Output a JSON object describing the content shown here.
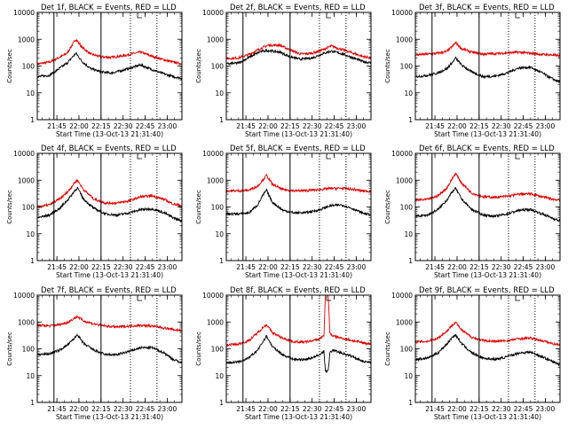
{
  "colors": {
    "black_series": "#000000",
    "red_series": "#e00000",
    "axis": "#000000",
    "background": "#ffffff"
  },
  "shared": {
    "xlabel": "Start Time (13-Oct-13 21:31:40)",
    "ylabel": "Counts/sec",
    "x_tick_labels": [
      "21:45",
      "22:00",
      "22:15",
      "22:30",
      "22:45",
      "23:00"
    ],
    "y_tick_labels": [
      "1",
      "10",
      "100",
      "1000",
      "10000"
    ]
  },
  "chart_data": [
    {
      "type": "line",
      "title": "Det 1f, BLACK = Events, RED = LLD",
      "xlabel": "Start Time (13-Oct-13 21:31:40)",
      "ylabel": "Counts/sec",
      "x_range": [
        "21:31:40",
        "23:10"
      ],
      "y_scale": "log",
      "ylim": [
        1,
        10000
      ],
      "solid_vlines": [
        "21:43",
        "22:15"
      ],
      "dotted_vlines": [
        "22:35",
        "22:53"
      ],
      "series": [
        {
          "color": "red",
          "x": [
            "21:32",
            "21:40",
            "21:45",
            "21:52",
            "21:56",
            "21:58",
            "22:02",
            "22:08",
            "22:15",
            "22:22",
            "22:30",
            "22:38",
            "22:42",
            "22:48",
            "22:56",
            "23:04",
            "23:10"
          ],
          "values": [
            120,
            140,
            190,
            300,
            700,
            1000,
            500,
            280,
            220,
            210,
            240,
            300,
            330,
            250,
            180,
            140,
            120
          ]
        },
        {
          "color": "black",
          "x": [
            "21:32",
            "21:40",
            "21:45",
            "21:52",
            "21:56",
            "21:58",
            "22:02",
            "22:08",
            "22:15",
            "22:22",
            "22:30",
            "22:38",
            "22:42",
            "22:48",
            "22:56",
            "23:04",
            "23:10"
          ],
          "values": [
            40,
            45,
            70,
            130,
            230,
            300,
            150,
            80,
            60,
            55,
            70,
            95,
            110,
            80,
            55,
            40,
            35
          ]
        }
      ]
    },
    {
      "type": "line",
      "title": "Det 2f, BLACK = Events, RED = LLD",
      "xlabel": "Start Time (13-Oct-13 21:31:40)",
      "ylabel": "Counts/sec",
      "x_range": [
        "21:31:40",
        "23:10"
      ],
      "y_scale": "log",
      "ylim": [
        1,
        10000
      ],
      "solid_vlines": [
        "21:43",
        "22:15"
      ],
      "dotted_vlines": [
        "22:35",
        "22:53"
      ],
      "series": [
        {
          "color": "red",
          "x": [
            "21:32",
            "21:40",
            "21:48",
            "21:55",
            "22:00",
            "22:08",
            "22:15",
            "22:22",
            "22:30",
            "22:38",
            "22:43",
            "22:50",
            "22:58",
            "23:04",
            "23:10"
          ],
          "values": [
            190,
            200,
            280,
            450,
            600,
            600,
            400,
            280,
            300,
            420,
            560,
            420,
            300,
            230,
            200
          ]
        },
        {
          "color": "black",
          "x": [
            "21:32",
            "21:40",
            "21:48",
            "21:55",
            "22:00",
            "22:08",
            "22:15",
            "22:22",
            "22:30",
            "22:38",
            "22:43",
            "22:50",
            "22:58",
            "23:04",
            "23:10"
          ],
          "values": [
            120,
            130,
            220,
            350,
            380,
            330,
            220,
            180,
            200,
            300,
            360,
            290,
            200,
            150,
            130
          ]
        }
      ]
    },
    {
      "type": "line",
      "title": "Det 3f, BLACK = Events, RED = LLD",
      "xlabel": "Start Time (13-Oct-13 21:31:40)",
      "ylabel": "Counts/sec",
      "x_range": [
        "21:31:40",
        "23:10"
      ],
      "y_scale": "log",
      "ylim": [
        1,
        10000
      ],
      "solid_vlines": [
        "21:43",
        "22:15"
      ],
      "dotted_vlines": [
        "22:35",
        "22:53"
      ],
      "series": [
        {
          "color": "red",
          "x": [
            "21:32",
            "21:40",
            "21:47",
            "21:53",
            "21:57",
            "21:59",
            "22:03",
            "22:10",
            "22:18",
            "22:26",
            "22:34",
            "22:42",
            "22:50",
            "22:58",
            "23:04",
            "23:10"
          ],
          "values": [
            260,
            280,
            300,
            350,
            550,
            750,
            450,
            330,
            280,
            290,
            310,
            330,
            300,
            270,
            260,
            240
          ]
        },
        {
          "color": "black",
          "x": [
            "21:32",
            "21:40",
            "21:47",
            "21:53",
            "21:57",
            "21:59",
            "22:03",
            "22:10",
            "22:18",
            "22:26",
            "22:34",
            "22:42",
            "22:50",
            "22:58",
            "23:04",
            "23:10"
          ],
          "values": [
            40,
            45,
            55,
            80,
            140,
            200,
            110,
            60,
            40,
            42,
            55,
            85,
            90,
            55,
            35,
            25
          ]
        }
      ]
    },
    {
      "type": "line",
      "title": "Det 4f, BLACK = Events, RED = LLD",
      "xlabel": "Start Time (13-Oct-13 21:31:40)",
      "ylabel": "Counts/sec",
      "x_range": [
        "21:31:40",
        "23:10"
      ],
      "y_scale": "log",
      "ylim": [
        1,
        10000
      ],
      "solid_vlines": [
        "21:43",
        "22:15"
      ],
      "dotted_vlines": [
        "22:35",
        "22:53"
      ],
      "series": [
        {
          "color": "red",
          "x": [
            "21:32",
            "21:40",
            "21:47",
            "21:53",
            "21:57",
            "21:59",
            "22:03",
            "22:10",
            "22:18",
            "22:26",
            "22:34",
            "22:42",
            "22:50",
            "22:58",
            "23:04",
            "23:10"
          ],
          "values": [
            100,
            120,
            200,
            400,
            800,
            1000,
            450,
            200,
            140,
            140,
            170,
            240,
            260,
            190,
            130,
            110
          ]
        },
        {
          "color": "black",
          "x": [
            "21:32",
            "21:40",
            "21:47",
            "21:53",
            "21:57",
            "21:59",
            "22:03",
            "22:10",
            "22:18",
            "22:26",
            "22:34",
            "22:42",
            "22:50",
            "22:58",
            "23:04",
            "23:10"
          ],
          "values": [
            40,
            50,
            90,
            200,
            400,
            520,
            200,
            90,
            55,
            50,
            60,
            80,
            85,
            60,
            40,
            30
          ]
        }
      ]
    },
    {
      "type": "line",
      "title": "Det 5f, BLACK = Events, RED = LLD",
      "xlabel": "Start Time (13-Oct-13 21:31:40)",
      "ylabel": "Counts/sec",
      "x_range": [
        "21:31:40",
        "23:10"
      ],
      "y_scale": "log",
      "ylim": [
        1,
        10000
      ],
      "solid_vlines": [
        "21:43",
        "22:15"
      ],
      "dotted_vlines": [
        "22:35",
        "22:53"
      ],
      "series": [
        {
          "color": "red",
          "x": [
            "21:32",
            "21:40",
            "21:47",
            "21:53",
            "21:57",
            "21:59",
            "22:03",
            "22:10",
            "22:18",
            "22:26",
            "22:34",
            "22:42",
            "22:50",
            "22:58",
            "23:04",
            "23:10"
          ],
          "values": [
            400,
            400,
            420,
            600,
            1100,
            1500,
            700,
            450,
            400,
            410,
            440,
            490,
            500,
            450,
            400,
            380
          ]
        },
        {
          "color": "black",
          "x": [
            "21:32",
            "21:40",
            "21:47",
            "21:53",
            "21:57",
            "21:59",
            "22:03",
            "22:10",
            "22:18",
            "22:26",
            "22:34",
            "22:42",
            "22:50",
            "22:58",
            "23:04",
            "23:10"
          ],
          "values": [
            55,
            55,
            60,
            120,
            300,
            420,
            150,
            75,
            60,
            62,
            75,
            110,
            120,
            85,
            60,
            50
          ]
        }
      ]
    },
    {
      "type": "line",
      "title": "Det 6f, BLACK = Events, RED = LLD",
      "xlabel": "Start Time (13-Oct-13 21:31:40)",
      "ylabel": "Counts/sec",
      "x_range": [
        "21:31:40",
        "23:10"
      ],
      "y_scale": "log",
      "ylim": [
        1,
        10000
      ],
      "solid_vlines": [
        "21:43",
        "22:15"
      ],
      "dotted_vlines": [
        "22:35",
        "22:53"
      ],
      "series": [
        {
          "color": "red",
          "x": [
            "21:32",
            "21:40",
            "21:47",
            "21:53",
            "21:57",
            "21:59",
            "22:03",
            "22:10",
            "22:18",
            "22:26",
            "22:34",
            "22:42",
            "22:50",
            "22:58",
            "23:04",
            "23:10"
          ],
          "values": [
            180,
            190,
            260,
            500,
            1200,
            1800,
            800,
            330,
            240,
            230,
            250,
            300,
            310,
            240,
            200,
            180
          ]
        },
        {
          "color": "black",
          "x": [
            "21:32",
            "21:40",
            "21:47",
            "21:53",
            "21:57",
            "21:59",
            "22:03",
            "22:10",
            "22:18",
            "22:26",
            "22:34",
            "22:42",
            "22:50",
            "22:58",
            "23:04",
            "23:10"
          ],
          "values": [
            45,
            50,
            80,
            180,
            380,
            500,
            200,
            80,
            50,
            45,
            55,
            75,
            80,
            55,
            40,
            30
          ]
        }
      ]
    },
    {
      "type": "line",
      "title": "Det 7f, BLACK = Events, RED = LLD",
      "xlabel": "Start Time (13-Oct-13 21:31:40)",
      "ylabel": "Counts/sec",
      "x_range": [
        "21:31:40",
        "23:10"
      ],
      "y_scale": "log",
      "ylim": [
        1,
        10000
      ],
      "solid_vlines": [
        "21:43",
        "22:15"
      ],
      "dotted_vlines": [
        "22:35",
        "22:53"
      ],
      "series": [
        {
          "color": "red",
          "x": [
            "21:32",
            "21:40",
            "21:47",
            "21:53",
            "21:57",
            "21:59",
            "22:03",
            "22:10",
            "22:18",
            "22:26",
            "22:34",
            "22:42",
            "22:50",
            "22:58",
            "23:04",
            "23:10"
          ],
          "values": [
            750,
            720,
            800,
            1000,
            1400,
            1600,
            1100,
            850,
            700,
            650,
            700,
            750,
            700,
            600,
            520,
            480
          ]
        },
        {
          "color": "black",
          "x": [
            "21:32",
            "21:40",
            "21:47",
            "21:53",
            "21:57",
            "21:59",
            "22:03",
            "22:10",
            "22:18",
            "22:26",
            "22:34",
            "22:42",
            "22:50",
            "22:58",
            "23:04",
            "23:10"
          ],
          "values": [
            60,
            65,
            90,
            150,
            250,
            340,
            160,
            90,
            60,
            60,
            80,
            110,
            110,
            70,
            40,
            30
          ]
        }
      ]
    },
    {
      "type": "line",
      "title": "Det 8f, BLACK = Events, RED = LLD",
      "xlabel": "Start Time (13-Oct-13 21:31:40)",
      "ylabel": "Counts/sec",
      "x_range": [
        "21:31:40",
        "23:10"
      ],
      "y_scale": "log",
      "ylim": [
        1,
        10000
      ],
      "solid_vlines": [
        "21:43",
        "22:15"
      ],
      "dotted_vlines": [
        "22:35",
        "22:53"
      ],
      "series": [
        {
          "color": "red",
          "x": [
            "21:32",
            "21:40",
            "21:47",
            "21:53",
            "21:57",
            "21:59",
            "22:03",
            "22:10",
            "22:18",
            "22:26",
            "22:34",
            "22:38",
            "22:39",
            "22:40",
            "22:41",
            "22:42",
            "22:44",
            "22:50",
            "22:58",
            "23:04",
            "23:10"
          ],
          "values": [
            140,
            150,
            200,
            400,
            650,
            800,
            400,
            250,
            180,
            180,
            220,
            300,
            10000,
            10000,
            10000,
            400,
            300,
            250,
            200,
            170,
            150
          ]
        },
        {
          "color": "black",
          "x": [
            "21:32",
            "21:40",
            "21:47",
            "21:53",
            "21:57",
            "21:59",
            "22:03",
            "22:10",
            "22:18",
            "22:26",
            "22:34",
            "22:38",
            "22:39",
            "22:41",
            "22:42",
            "22:44",
            "22:50",
            "22:58",
            "23:04",
            "23:10"
          ],
          "values": [
            30,
            32,
            45,
            90,
            200,
            300,
            120,
            60,
            40,
            40,
            55,
            80,
            15,
            15,
            70,
            90,
            70,
            50,
            35,
            30
          ]
        }
      ]
    },
    {
      "type": "line",
      "title": "Det 9f, BLACK = Events, RED = LLD",
      "xlabel": "Start Time (13-Oct-13 21:31:40)",
      "ylabel": "Counts/sec",
      "x_range": [
        "21:31:40",
        "23:10"
      ],
      "y_scale": "log",
      "ylim": [
        1,
        10000
      ],
      "solid_vlines": [
        "21:43",
        "22:15"
      ],
      "dotted_vlines": [
        "22:35",
        "22:53"
      ],
      "series": [
        {
          "color": "red",
          "x": [
            "21:32",
            "21:40",
            "21:47",
            "21:53",
            "21:57",
            "21:59",
            "22:03",
            "22:10",
            "22:18",
            "22:26",
            "22:34",
            "22:42",
            "22:50",
            "22:58",
            "23:04",
            "23:10"
          ],
          "values": [
            180,
            190,
            250,
            450,
            800,
            1000,
            500,
            270,
            200,
            190,
            200,
            240,
            250,
            200,
            160,
            140
          ]
        },
        {
          "color": "black",
          "x": [
            "21:32",
            "21:40",
            "21:47",
            "21:53",
            "21:57",
            "21:59",
            "22:03",
            "22:10",
            "22:18",
            "22:26",
            "22:34",
            "22:42",
            "22:50",
            "22:58",
            "23:04",
            "23:10"
          ],
          "values": [
            40,
            45,
            70,
            150,
            280,
            330,
            160,
            70,
            45,
            40,
            50,
            70,
            75,
            50,
            35,
            25
          ]
        }
      ]
    }
  ]
}
